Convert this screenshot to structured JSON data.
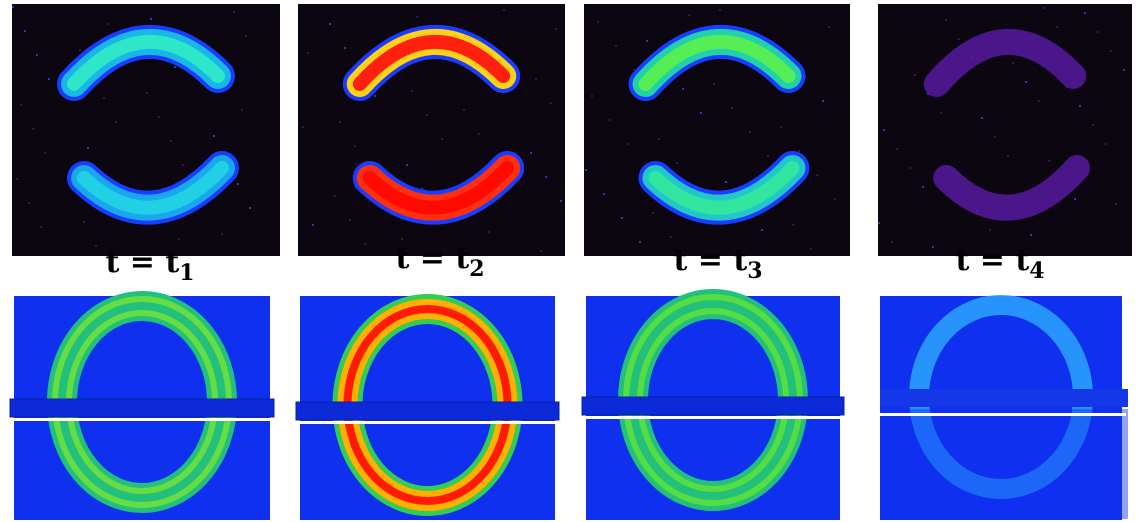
{
  "panels": [
    {
      "label": "t = t",
      "subscript": "1"
    },
    {
      "label": "t = t",
      "subscript": "2"
    },
    {
      "label": "t = t",
      "subscript": "3"
    },
    {
      "label": "t = t",
      "subscript": "4"
    }
  ]
}
